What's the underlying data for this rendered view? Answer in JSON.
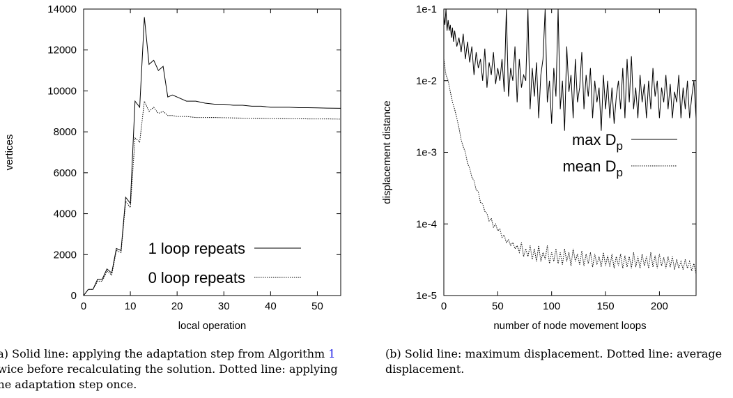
{
  "chart_data": [
    {
      "type": "line",
      "panel": "a",
      "xlabel": "local operation",
      "ylabel": "vertices",
      "xlim": [
        0,
        55
      ],
      "ylim": [
        0,
        14000
      ],
      "xticks": [
        0,
        10,
        20,
        30,
        40,
        50
      ],
      "yticks": [
        0,
        2000,
        4000,
        6000,
        8000,
        10000,
        12000,
        14000
      ],
      "legend": "bottom-right",
      "grid": false,
      "series": [
        {
          "name": "1 loop repeats",
          "style": "solid",
          "x": [
            0,
            1,
            2,
            3,
            4,
            5,
            6,
            7,
            8,
            9,
            10,
            11,
            12,
            13,
            14,
            15,
            16,
            17,
            18,
            19,
            20,
            22,
            24,
            26,
            28,
            30,
            32,
            34,
            36,
            38,
            40,
            42,
            44,
            46,
            48,
            50,
            52,
            55
          ],
          "y": [
            0,
            300,
            300,
            800,
            800,
            1300,
            1100,
            2300,
            2200,
            4800,
            4500,
            9500,
            9200,
            13600,
            11300,
            11500,
            11000,
            11200,
            9700,
            9800,
            9700,
            9500,
            9500,
            9400,
            9350,
            9350,
            9300,
            9300,
            9250,
            9250,
            9200,
            9200,
            9200,
            9180,
            9180,
            9170,
            9160,
            9150
          ]
        },
        {
          "name": "0 loop repeats",
          "style": "dotted",
          "x": [
            0,
            1,
            2,
            3,
            4,
            5,
            6,
            7,
            8,
            9,
            10,
            11,
            12,
            13,
            14,
            15,
            16,
            17,
            18,
            19,
            20,
            22,
            24,
            26,
            28,
            30,
            32,
            34,
            36,
            38,
            40,
            42,
            44,
            46,
            48,
            50,
            52,
            55
          ],
          "y": [
            0,
            300,
            300,
            700,
            700,
            1200,
            1000,
            2200,
            2100,
            4600,
            4300,
            7700,
            7500,
            9500,
            9000,
            9200,
            8900,
            9000,
            8800,
            8800,
            8750,
            8750,
            8700,
            8700,
            8700,
            8690,
            8680,
            8670,
            8660,
            8660,
            8650,
            8650,
            8640,
            8640,
            8630,
            8630,
            8630,
            8620
          ]
        }
      ]
    },
    {
      "type": "line",
      "panel": "b",
      "xlabel": "number of node movement loops",
      "ylabel": "displacement distance",
      "xlim": [
        0,
        234
      ],
      "ylim": [
        1e-05,
        0.1
      ],
      "yscale": "log",
      "xticks": [
        0,
        50,
        100,
        150,
        200
      ],
      "ytick_labels": [
        "1e-5",
        "1e-4",
        "1e-3",
        "1e-2",
        "1e-1"
      ],
      "ytick_values": [
        1e-05,
        0.0001,
        0.001,
        0.01,
        0.1
      ],
      "legend": "top-right",
      "grid": false,
      "series": [
        {
          "name": "max D_p",
          "style": "solid",
          "x": [
            0,
            1,
            2,
            3,
            4,
            5,
            6,
            7,
            8,
            9,
            10,
            12,
            14,
            16,
            18,
            20,
            22,
            24,
            26,
            28,
            30,
            32,
            34,
            36,
            38,
            40,
            42,
            44,
            46,
            48,
            50,
            52,
            54,
            56,
            58,
            60,
            62,
            64,
            66,
            68,
            70,
            72,
            74,
            76,
            78,
            80,
            82,
            84,
            86,
            88,
            90,
            92,
            94,
            96,
            98,
            100,
            102,
            104,
            106,
            108,
            110,
            112,
            114,
            116,
            118,
            120,
            122,
            124,
            126,
            128,
            130,
            132,
            134,
            136,
            138,
            140,
            142,
            144,
            146,
            148,
            150,
            152,
            154,
            156,
            158,
            160,
            162,
            164,
            166,
            168,
            170,
            172,
            174,
            176,
            178,
            180,
            182,
            184,
            186,
            188,
            190,
            192,
            194,
            196,
            198,
            200,
            202,
            204,
            206,
            208,
            210,
            212,
            214,
            216,
            218,
            220,
            222,
            224,
            226,
            228,
            230,
            232,
            234
          ],
          "y": [
            0.08,
            0.06,
            0.1,
            0.05,
            0.07,
            0.05,
            0.06,
            0.04,
            0.055,
            0.035,
            0.05,
            0.03,
            0.04,
            0.025,
            0.045,
            0.02,
            0.035,
            0.018,
            0.03,
            0.012,
            0.025,
            0.015,
            0.02,
            0.01,
            0.028,
            0.008,
            0.018,
            0.012,
            0.025,
            0.009,
            0.015,
            0.01,
            0.02,
            0.007,
            0.1,
            0.006,
            0.015,
            0.01,
            0.03,
            0.005,
            0.02,
            0.008,
            0.012,
            0.01,
            0.1,
            0.004,
            0.015,
            0.006,
            0.018,
            0.003,
            0.012,
            0.02,
            0.1,
            0.005,
            0.01,
            0.0025,
            0.015,
            0.006,
            0.1,
            0.004,
            0.01,
            0.002,
            0.03,
            0.007,
            0.012,
            0.003,
            0.02,
            0.005,
            0.008,
            0.025,
            0.004,
            0.012,
            0.006,
            0.015,
            0.003,
            0.01,
            0.005,
            0.008,
            0.002,
            0.012,
            0.004,
            0.01,
            0.003,
            0.008,
            0.0025,
            0.006,
            0.01,
            0.004,
            0.015,
            0.003,
            0.02,
            0.005,
            0.022,
            0.004,
            0.008,
            0.003,
            0.012,
            0.005,
            0.009,
            0.003,
            0.01,
            0.004,
            0.015,
            0.006,
            0.01,
            0.003,
            0.008,
            0.005,
            0.012,
            0.004,
            0.009,
            0.003,
            0.007,
            0.005,
            0.012,
            0.003,
            0.008,
            0.004,
            0.01,
            0.003,
            0.006,
            0.01,
            0.003
          ]
        },
        {
          "name": "mean D_p",
          "style": "dotted",
          "x": [
            0,
            2,
            4,
            6,
            8,
            10,
            12,
            14,
            16,
            18,
            20,
            22,
            24,
            26,
            28,
            30,
            32,
            34,
            36,
            38,
            40,
            42,
            44,
            46,
            48,
            50,
            52,
            54,
            56,
            58,
            60,
            62,
            64,
            66,
            68,
            70,
            72,
            74,
            76,
            78,
            80,
            82,
            84,
            86,
            88,
            90,
            92,
            94,
            96,
            98,
            100,
            102,
            104,
            106,
            108,
            110,
            112,
            114,
            116,
            118,
            120,
            122,
            124,
            126,
            128,
            130,
            132,
            134,
            136,
            138,
            140,
            142,
            144,
            146,
            148,
            150,
            152,
            154,
            156,
            158,
            160,
            162,
            164,
            166,
            168,
            170,
            172,
            174,
            176,
            178,
            180,
            182,
            184,
            186,
            188,
            190,
            192,
            194,
            196,
            198,
            200,
            202,
            204,
            206,
            208,
            210,
            212,
            214,
            216,
            218,
            220,
            222,
            224,
            226,
            228,
            230,
            232,
            234
          ],
          "y": [
            0.02,
            0.012,
            0.01,
            0.007,
            0.005,
            0.004,
            0.003,
            0.0022,
            0.0015,
            0.0012,
            0.001,
            0.0007,
            0.0006,
            0.00045,
            0.0004,
            0.0003,
            0.00028,
            0.0002,
            0.00019,
            0.00015,
            0.00014,
            0.00011,
            0.00012,
            9e-05,
            0.0001,
            8e-05,
            8.5e-05,
            6.5e-05,
            7e-05,
            5.5e-05,
            6e-05,
            5e-05,
            5.5e-05,
            4.5e-05,
            5e-05,
            4e-05,
            5.5e-05,
            3.5e-05,
            4.5e-05,
            3.5e-05,
            5e-05,
            3.2e-05,
            4.5e-05,
            3e-05,
            5e-05,
            3e-05,
            4e-05,
            3.2e-05,
            5e-05,
            2.8e-05,
            4e-05,
            3e-05,
            4.5e-05,
            2.8e-05,
            4e-05,
            2.7e-05,
            4.5e-05,
            3e-05,
            4e-05,
            2.6e-05,
            4.5e-05,
            3e-05,
            3.8e-05,
            2.7e-05,
            4.2e-05,
            2.6e-05,
            3.8e-05,
            2.8e-05,
            4e-05,
            2.5e-05,
            3.8e-05,
            2.7e-05,
            3.5e-05,
            2.5e-05,
            4e-05,
            2.6e-05,
            3.6e-05,
            2.5e-05,
            3.8e-05,
            2.4e-05,
            3.5e-05,
            2.6e-05,
            3.8e-05,
            2.4e-05,
            3.6e-05,
            2.5e-05,
            3.5e-05,
            2.4e-05,
            4e-05,
            2.5e-05,
            3.5e-05,
            2.4e-05,
            3.8e-05,
            2.6e-05,
            3.5e-05,
            2.4e-05,
            4e-05,
            2.5e-05,
            3.6e-05,
            2.4e-05,
            3.8e-05,
            2.6e-05,
            3.4e-05,
            2.4e-05,
            3.5e-05,
            2.5e-05,
            3.5e-05,
            2.3e-05,
            3.2e-05,
            2.4e-05,
            3e-05,
            2.3e-05,
            3.2e-05,
            2.4e-05,
            3e-05,
            2.2e-05,
            2.8e-05,
            2e-05
          ]
        }
      ]
    }
  ],
  "captions": {
    "a_before": "(a) Solid line: applying the adaptation step from Algorithm ",
    "a_ref": "1",
    "a_after": " twice before recalculating the solution. Dotted line: applying the adaptation step once.",
    "b": "(b) Solid line: maximum displacement. Dotted line: average displacement."
  }
}
